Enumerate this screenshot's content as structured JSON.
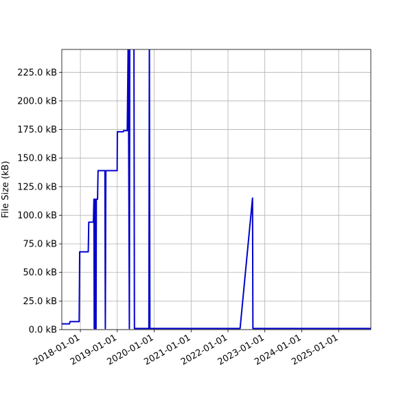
{
  "chart_data": {
    "type": "line",
    "title": "",
    "xlabel": "",
    "ylabel": "File Size (kB)",
    "grid": true,
    "legend": "none",
    "xlim": [
      "2017-07-01",
      "2025-11-15"
    ],
    "ylim": [
      0,
      245
    ],
    "y_ticks": [
      0,
      25,
      50,
      75,
      100,
      125,
      150,
      175,
      200,
      225
    ],
    "y_tick_labels": [
      "0.0 kB",
      "25.0 kB",
      "50.0 kB",
      "75.0 kB",
      "100.0 kB",
      "125.0 kB",
      "150.0 kB",
      "175.0 kB",
      "200.0 kB",
      "225.0 kB"
    ],
    "x_ticks": [
      "2018-01-01",
      "2019-01-01",
      "2020-01-01",
      "2021-01-01",
      "2022-01-01",
      "2023-01-01",
      "2024-01-01",
      "2025-01-01"
    ],
    "x_tick_labels": [
      "2018-01-01",
      "2019-01-01",
      "2020-01-01",
      "2021-01-01",
      "2022-01-01",
      "2023-01-01",
      "2024-01-01",
      "2025-01-01"
    ],
    "series": [
      {
        "color": "#0000cc",
        "points": [
          [
            "2017-07-01",
            5
          ],
          [
            "2017-09-15",
            5
          ],
          [
            "2017-09-20",
            7
          ],
          [
            "2017-12-20",
            7
          ],
          [
            "2017-12-25",
            68
          ],
          [
            "2018-03-20",
            68
          ],
          [
            "2018-03-25",
            94
          ],
          [
            "2018-05-10",
            94
          ],
          [
            "2018-05-15",
            114
          ],
          [
            "2018-05-18",
            1
          ],
          [
            "2018-05-21",
            114
          ],
          [
            "2018-05-25",
            1
          ],
          [
            "2018-06-01",
            114
          ],
          [
            "2018-06-05",
            1
          ],
          [
            "2018-06-08",
            114
          ],
          [
            "2018-06-20",
            114
          ],
          [
            "2018-06-25",
            139
          ],
          [
            "2018-09-01",
            139
          ],
          [
            "2018-09-05",
            1
          ],
          [
            "2018-09-10",
            139
          ],
          [
            "2018-12-31",
            139
          ],
          [
            "2019-01-02",
            173
          ],
          [
            "2019-03-01",
            173
          ],
          [
            "2019-03-05",
            174
          ],
          [
            "2019-04-10",
            174
          ],
          [
            "2019-04-20",
            260
          ],
          [
            "2019-05-01",
            1
          ],
          [
            "2019-05-05",
            260
          ],
          [
            "2019-06-15",
            260
          ],
          [
            "2019-06-20",
            1
          ],
          [
            "2019-11-10",
            1
          ],
          [
            "2019-11-15",
            260
          ],
          [
            "2019-11-20",
            1
          ],
          [
            "2022-05-01",
            1
          ],
          [
            "2022-09-01",
            115
          ],
          [
            "2022-09-05",
            1
          ],
          [
            "2025-11-15",
            1
          ]
        ]
      }
    ]
  }
}
